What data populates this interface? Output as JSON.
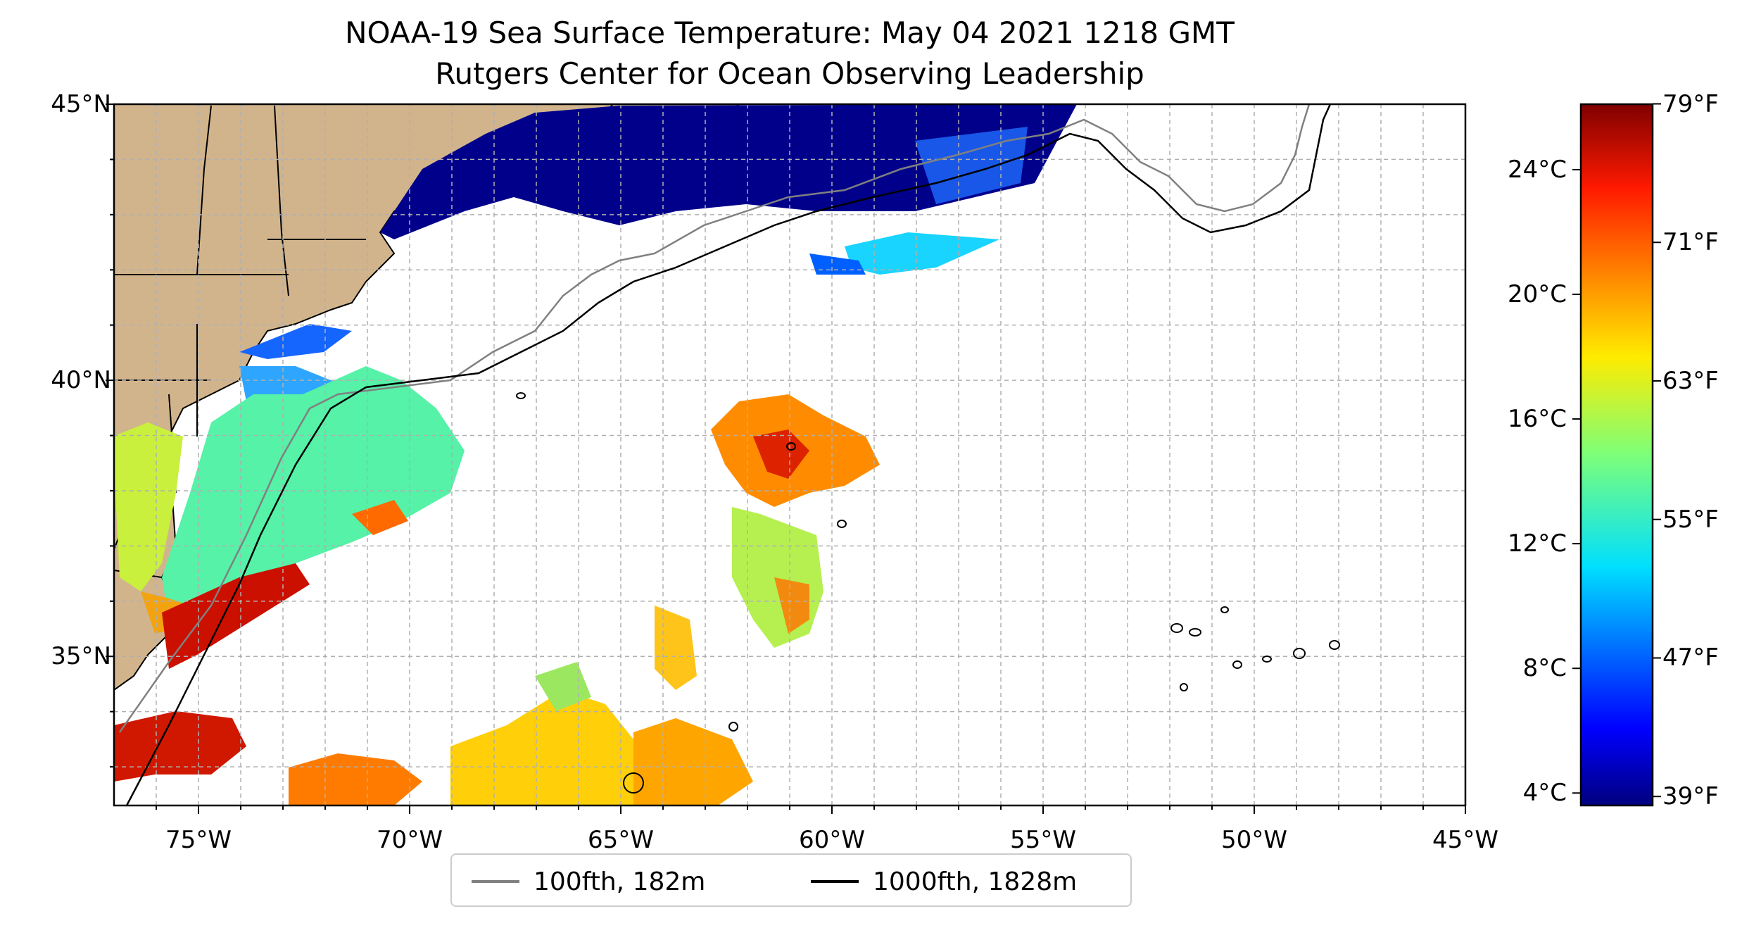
{
  "title_line1": "NOAA-19 Sea Surface Temperature: May 04 2021 1218 GMT",
  "title_line2": "Rutgers Center for Ocean Observing Leadership",
  "map": {
    "lat_range": [
      32.3,
      45.0
    ],
    "lon_range": [
      -77.0,
      -45.0
    ],
    "lat_ticks": [
      "45°N",
      "40°N",
      "35°N"
    ],
    "lon_ticks": [
      "75°W",
      "70°W",
      "65°W",
      "60°W",
      "55°W",
      "50°W",
      "45°W"
    ],
    "gridlines": true,
    "colors": {
      "land": "#d2b48c",
      "water_inland": "#a6c8ec",
      "grid": "#b0b0b0"
    }
  },
  "colorbar": {
    "colormap": "jet",
    "range_c": [
      3.6,
      26.1
    ],
    "celsius_ticks": [
      "4°C",
      "8°C",
      "12°C",
      "16°C",
      "20°C",
      "24°C"
    ],
    "fahrenheit_ticks": [
      "39°F",
      "47°F",
      "55°F",
      "63°F",
      "71°F",
      "79°F"
    ]
  },
  "legend": {
    "items": [
      {
        "label": "100fth, 182m",
        "color": "#808080"
      },
      {
        "label": "1000fth, 1828m",
        "color": "#000000"
      }
    ]
  }
}
